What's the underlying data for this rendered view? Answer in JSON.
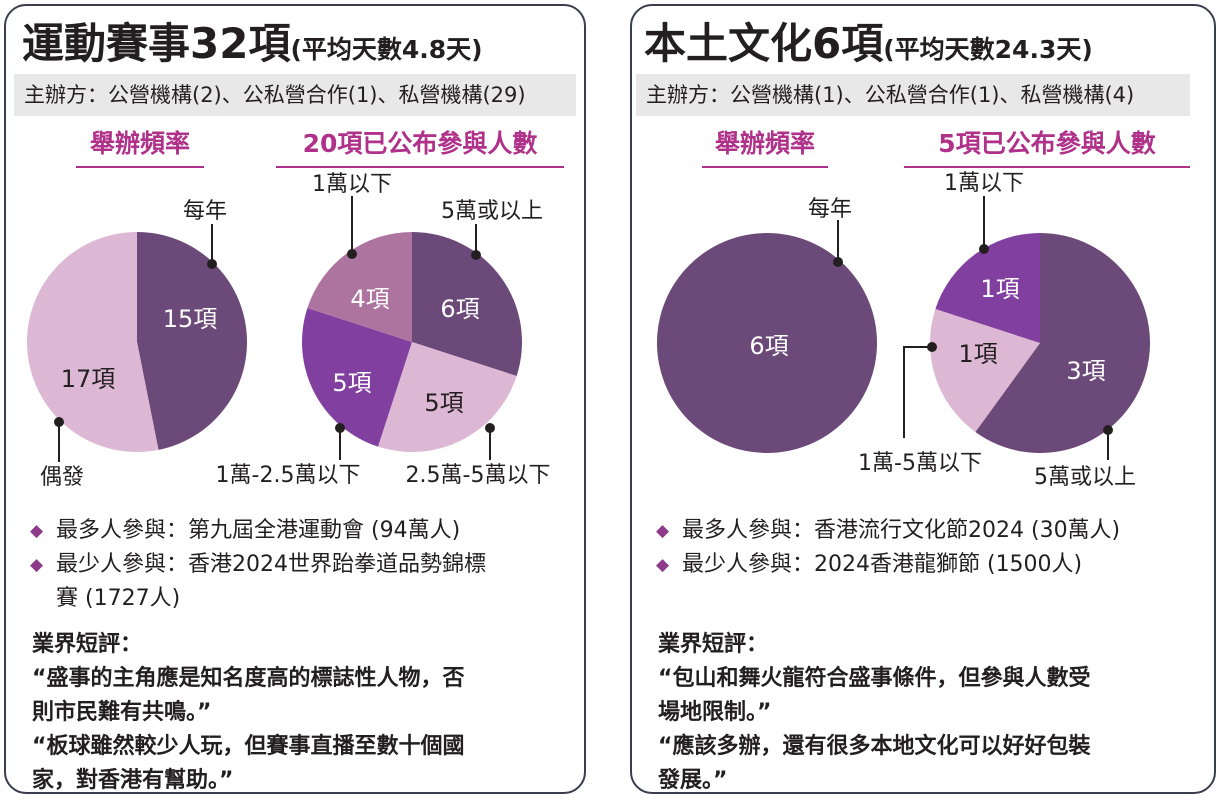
{
  "colors": {
    "purple_dark": "#6b4978",
    "lilac": "#ddb8d4",
    "violet": "#8140a0",
    "mauve": "#ad74a0",
    "accent": "#b0318a",
    "bullet": "#8e3a8a"
  },
  "left": {
    "title_main": "運動賽事32項",
    "title_sub": "(平均天數4.8天)",
    "organizer": "主辦方：公營機構(2)、公私營合作(1)、私營機構(29)",
    "chart1_heading": "舉辦頻率",
    "chart2_heading": "20項已公布參與人數",
    "bullets": [
      "最多人參與：第九屆全港運動會 (94萬人)",
      "最少人參與：香港2024世界跆拳道品勢錦標",
      "賽 (1727人)"
    ],
    "comments": [
      "業界短評：",
      "“盛事的主角應是知名度高的標誌性人物，否",
      "則市民難有共鳴。”",
      "“板球雖然較少人玩，但賽事直播至數十個國",
      "家，對香港有幫助。”"
    ]
  },
  "right": {
    "title_main": "本土文化6項",
    "title_sub": "(平均天數24.3天)",
    "organizer": "主辦方：公營機構(1)、公私營合作(1)、私營機構(4)",
    "chart1_heading": "舉辦頻率",
    "chart2_heading": "5項已公布參與人數",
    "bullets": [
      "最多人參與：香港流行文化節2024 (30萬人)",
      "最少人參與：2024香港龍獅節 (1500人)"
    ],
    "comments": [
      "業界短評：",
      "“包山和舞火龍符合盛事條件，但參與人數受",
      "場地限制。”",
      "“應該多辦，還有很多本地文化可以好好包裝",
      "發展。”"
    ]
  },
  "chart_data": [
    {
      "id": "sports-frequency",
      "type": "pie",
      "title": "舉辦頻率",
      "slices": [
        {
          "label": "每年",
          "value": 15,
          "value_label": "15項",
          "color": "#6b4978"
        },
        {
          "label": "偶發",
          "value": 17,
          "value_label": "17項",
          "color": "#ddb8d4"
        }
      ]
    },
    {
      "id": "sports-participants",
      "type": "pie",
      "title": "20項已公布參與人數",
      "slices": [
        {
          "label": "5萬或以上",
          "value": 6,
          "value_label": "6項",
          "color": "#6b4978"
        },
        {
          "label": "2.5萬-5萬以下",
          "value": 5,
          "value_label": "5項",
          "color": "#ddb8d4"
        },
        {
          "label": "1萬-2.5萬以下",
          "value": 5,
          "value_label": "5項",
          "color": "#8140a0"
        },
        {
          "label": "1萬以下",
          "value": 4,
          "value_label": "4項",
          "color": "#ad74a0"
        }
      ]
    },
    {
      "id": "culture-frequency",
      "type": "pie",
      "title": "舉辦頻率",
      "slices": [
        {
          "label": "每年",
          "value": 6,
          "value_label": "6項",
          "color": "#6b4978"
        }
      ]
    },
    {
      "id": "culture-participants",
      "type": "pie",
      "title": "5項已公布參與人數",
      "slices": [
        {
          "label": "5萬或以上",
          "value": 3,
          "value_label": "3項",
          "color": "#6b4978"
        },
        {
          "label": "1萬-5萬以下",
          "value": 1,
          "value_label": "1項",
          "color": "#ddb8d4"
        },
        {
          "label": "1萬以下",
          "value": 1,
          "value_label": "1項",
          "color": "#8140a0"
        }
      ]
    }
  ]
}
